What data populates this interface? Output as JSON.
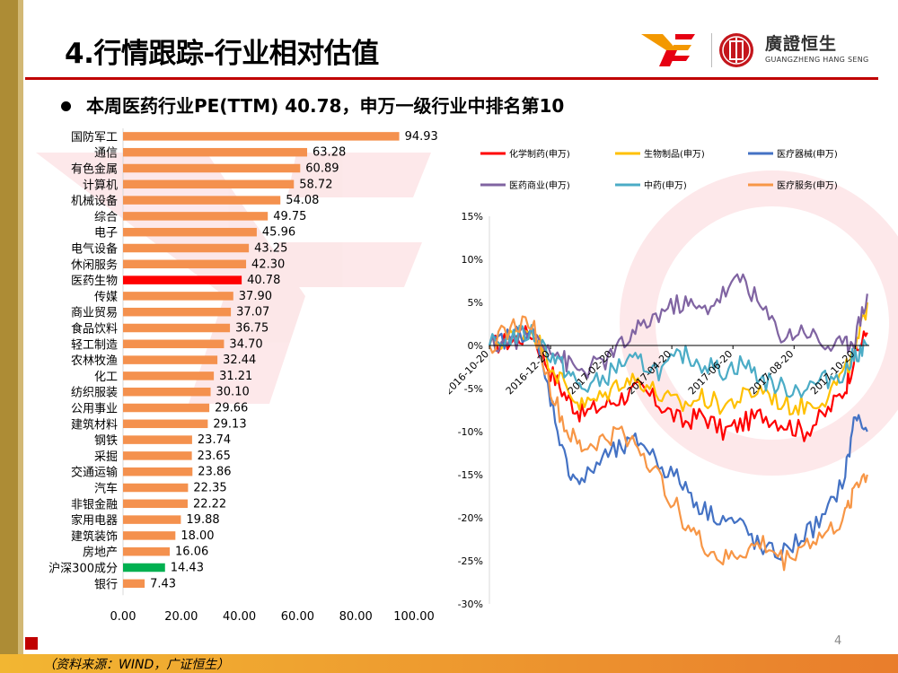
{
  "header": {
    "title": "4.行情跟踪-行业相对估值",
    "subtitle": "本周医药行业PE(TTM) 40.78，申万一级行业中排名第10"
  },
  "logo": {
    "name": "廣證恒生",
    "subname": "GUANGZHENG HANG SENG"
  },
  "footer": {
    "source": "（资料来源：WIND，广证恒生）",
    "page_number": "4"
  },
  "colors": {
    "accent": "#c00000",
    "bar_default": "#f4914e",
    "bar_highlight": "#ff0000",
    "bar_benchmark": "#00b050"
  },
  "chart_data": [
    {
      "type": "bar",
      "orientation": "horizontal",
      "title": "",
      "categories": [
        "国防军工",
        "通信",
        "有色金属",
        "计算机",
        "机械设备",
        "综合",
        "电子",
        "电气设备",
        "休闲服务",
        "医药生物",
        "传媒",
        "商业贸易",
        "食品饮料",
        "轻工制造",
        "农林牧渔",
        "化工",
        "纺织服装",
        "公用事业",
        "建筑材料",
        "钢铁",
        "采掘",
        "交通运输",
        "汽车",
        "非银金融",
        "家用电器",
        "建筑装饰",
        "房地产",
        "沪深300成分",
        "银行"
      ],
      "values": [
        94.93,
        63.28,
        60.89,
        58.72,
        54.08,
        49.75,
        45.96,
        43.25,
        42.3,
        40.78,
        37.9,
        37.07,
        36.75,
        34.7,
        32.44,
        31.21,
        30.1,
        29.66,
        29.13,
        23.74,
        23.65,
        23.86,
        22.35,
        22.22,
        19.88,
        18.0,
        16.06,
        14.43,
        7.43
      ],
      "labels": [
        "94.93",
        "63.28",
        "60.89",
        "58.72",
        "54.08",
        "49.75",
        "45.96",
        "43.25",
        "42.30",
        "40.78",
        "37.90",
        "37.07",
        "36.75",
        "34.70",
        "32.44",
        "31.21",
        "30.10",
        "29.66",
        "29.13",
        "23.74",
        "23.65",
        "23.86",
        "22.35",
        "22.22",
        "19.88",
        "18.00",
        "16.06",
        "14.43",
        "7.43"
      ],
      "highlight": {
        "医药生物": "#ff0000",
        "沪深300成分": "#00b050"
      },
      "xlim": [
        0,
        100
      ],
      "xticks": [
        "0.00",
        "20.00",
        "40.00",
        "60.00",
        "80.00",
        "100.00"
      ],
      "grid": false
    },
    {
      "type": "line",
      "title": "",
      "ylim": [
        -30,
        15
      ],
      "yticks": [
        "15%",
        "10%",
        "5%",
        "0%",
        "-5%",
        "-10%",
        "-15%",
        "-20%",
        "-25%",
        "-30%"
      ],
      "xticks": [
        "2016-10-20",
        "2016-12-20",
        "2017-02-20",
        "2017-04-20",
        "2017-06-20",
        "2017-08-20",
        "2017-10-20"
      ],
      "legend_position": "top",
      "series": [
        {
          "name": "化学制药(申万)",
          "color": "#ff0000",
          "x": [
            "2016-10-20",
            "2016-11-10",
            "2016-12-01",
            "2016-12-20",
            "2017-01-05",
            "2017-01-20",
            "2017-02-10",
            "2017-03-01",
            "2017-03-20",
            "2017-04-10",
            "2017-05-01",
            "2017-05-20",
            "2017-06-10",
            "2017-06-30",
            "2017-07-20",
            "2017-08-10",
            "2017-08-30",
            "2017-09-20",
            "2017-10-10",
            "2017-10-20",
            "2017-11-01"
          ],
          "values": [
            0,
            0.5,
            1.5,
            -3,
            -6,
            -8,
            -7,
            -6,
            -5,
            -7,
            -9,
            -8,
            -10,
            -9,
            -8,
            -9,
            -10,
            -8,
            -5,
            -1,
            1.5
          ]
        },
        {
          "name": "生物制品(申万)",
          "color": "#ffc000",
          "x": [
            "2016-10-20",
            "2016-11-10",
            "2016-12-01",
            "2016-12-20",
            "2017-01-05",
            "2017-01-20",
            "2017-02-10",
            "2017-03-01",
            "2017-03-20",
            "2017-04-10",
            "2017-05-01",
            "2017-05-20",
            "2017-06-10",
            "2017-06-30",
            "2017-07-20",
            "2017-08-10",
            "2017-08-30",
            "2017-09-20",
            "2017-10-10",
            "2017-10-20",
            "2017-11-01"
          ],
          "values": [
            0,
            1,
            2,
            -2,
            -5,
            -7,
            -6,
            -4,
            -4,
            -6,
            -7,
            -6,
            -7,
            -6,
            -5,
            -7,
            -7,
            -6,
            -3,
            -1,
            5
          ]
        },
        {
          "name": "医疗器械(申万)",
          "color": "#4472c4",
          "x": [
            "2016-10-20",
            "2016-11-10",
            "2016-12-01",
            "2016-12-20",
            "2017-01-05",
            "2017-01-20",
            "2017-02-10",
            "2017-03-01",
            "2017-03-20",
            "2017-04-10",
            "2017-05-01",
            "2017-05-20",
            "2017-06-10",
            "2017-06-30",
            "2017-07-20",
            "2017-08-10",
            "2017-08-30",
            "2017-09-20",
            "2017-10-10",
            "2017-10-20",
            "2017-11-01"
          ],
          "values": [
            0,
            1,
            2,
            -6,
            -14,
            -16,
            -13,
            -12,
            -11,
            -14,
            -16,
            -19,
            -20,
            -21,
            -24,
            -24,
            -22,
            -20,
            -15,
            -8,
            -10
          ]
        },
        {
          "name": "医药商业(申万)",
          "color": "#8064a2",
          "x": [
            "2016-10-20",
            "2016-11-10",
            "2016-12-01",
            "2016-12-20",
            "2017-01-05",
            "2017-01-20",
            "2017-02-10",
            "2017-03-01",
            "2017-03-20",
            "2017-04-10",
            "2017-05-01",
            "2017-05-20",
            "2017-06-10",
            "2017-06-30",
            "2017-07-20",
            "2017-08-10",
            "2017-08-30",
            "2017-09-20",
            "2017-10-10",
            "2017-10-20",
            "2017-11-01"
          ],
          "values": [
            0,
            0.5,
            1.5,
            0,
            -2,
            -3,
            -2,
            0,
            2,
            4,
            5,
            4,
            6,
            8,
            4,
            1,
            2,
            0,
            0,
            1,
            6
          ]
        },
        {
          "name": "中药(申万)",
          "color": "#4bacc6",
          "x": [
            "2016-10-20",
            "2016-11-10",
            "2016-12-01",
            "2016-12-20",
            "2017-01-05",
            "2017-01-20",
            "2017-02-10",
            "2017-03-01",
            "2017-03-20",
            "2017-04-10",
            "2017-05-01",
            "2017-05-20",
            "2017-06-10",
            "2017-06-30",
            "2017-07-20",
            "2017-08-10",
            "2017-08-30",
            "2017-09-20",
            "2017-10-10",
            "2017-10-20",
            "2017-11-01"
          ],
          "values": [
            0,
            1,
            1.5,
            -1,
            -3,
            -5,
            -4,
            -2,
            -2,
            -3,
            -1,
            -2,
            -3,
            -2,
            -4,
            -5,
            -5,
            -4,
            -3,
            -1,
            0
          ]
        },
        {
          "name": "医疗服务(申万)",
          "color": "#f79646",
          "x": [
            "2016-10-20",
            "2016-11-10",
            "2016-12-01",
            "2016-12-20",
            "2017-01-05",
            "2017-01-20",
            "2017-02-10",
            "2017-03-01",
            "2017-03-20",
            "2017-04-10",
            "2017-05-01",
            "2017-05-20",
            "2017-06-10",
            "2017-06-30",
            "2017-07-20",
            "2017-08-10",
            "2017-08-30",
            "2017-09-20",
            "2017-10-10",
            "2017-10-20",
            "2017-11-01"
          ],
          "values": [
            0,
            2,
            3,
            -5,
            -10,
            -12,
            -11,
            -10,
            -12,
            -16,
            -20,
            -23,
            -25,
            -24,
            -23,
            -25,
            -23,
            -22,
            -20,
            -16,
            -15
          ]
        }
      ]
    }
  ]
}
